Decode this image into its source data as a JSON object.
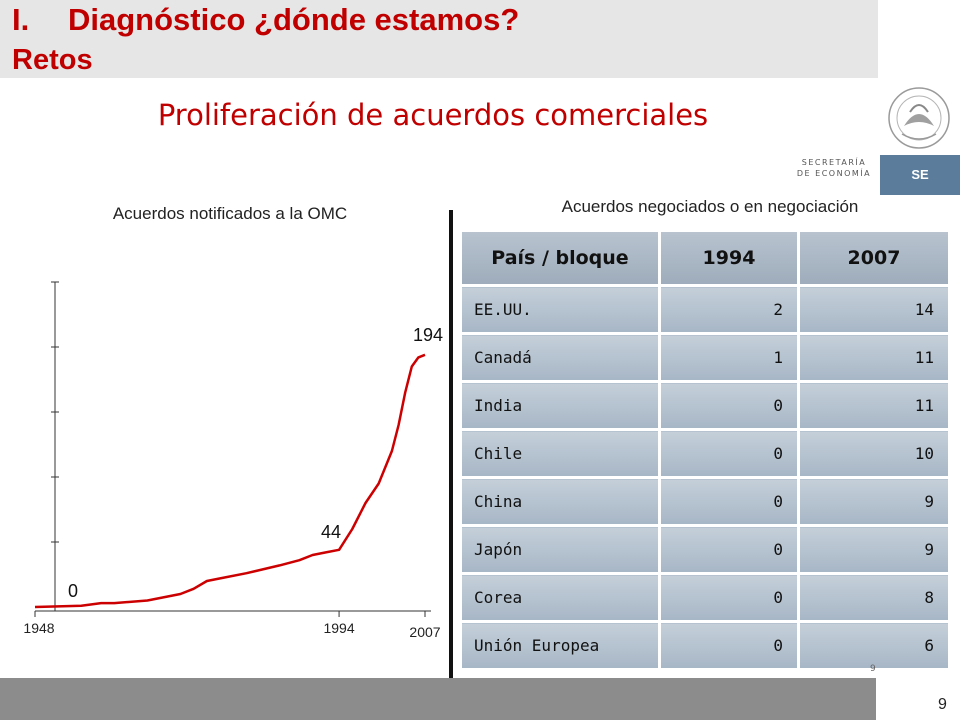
{
  "header": {
    "section_number": "I.",
    "title": "Diagnóstico ¿dónde estamos?",
    "retos": "Retos",
    "subtitle": "Proliferación de acuerdos comerciales"
  },
  "logo": {
    "secretaria": "SECRETARÍA",
    "economia": "DE ECONOMÍA",
    "se": "SE"
  },
  "chart_caption": "Acuerdos notificados a la OMC",
  "chart_data": {
    "type": "line",
    "title": "Acuerdos notificados a la OMC",
    "x": [
      1948,
      1955,
      1958,
      1960,
      1965,
      1970,
      1972,
      1974,
      1976,
      1980,
      1985,
      1988,
      1990,
      1992,
      1994,
      1996,
      1998,
      2000,
      2002,
      2003,
      2004,
      2005,
      2006,
      2007
    ],
    "y": [
      0,
      1,
      3,
      3,
      5,
      10,
      14,
      20,
      22,
      26,
      32,
      36,
      40,
      42,
      44,
      60,
      80,
      95,
      120,
      140,
      165,
      185,
      192,
      194
    ],
    "xticks": [
      "1948",
      "1994",
      "2007"
    ],
    "annotations": [
      {
        "x": 1948,
        "y": 0,
        "label": "0"
      },
      {
        "x": 1994,
        "y": 44,
        "label": "44"
      },
      {
        "x": 2007,
        "y": 194,
        "label": "194"
      }
    ],
    "xlim": [
      1948,
      2007
    ],
    "ylim": [
      0,
      250
    ],
    "line_color": "#cc0000"
  },
  "table_caption": "Acuerdos negociados o en negociación",
  "table": {
    "headers": [
      "País / bloque",
      "1994",
      "2007"
    ],
    "rows": [
      [
        "EE.UU.",
        "2",
        "14"
      ],
      [
        "Canadá",
        "1",
        "11"
      ],
      [
        "India",
        "0",
        "11"
      ],
      [
        "Chile",
        "0",
        "10"
      ],
      [
        "China",
        "0",
        "9"
      ],
      [
        "Japón",
        "0",
        "9"
      ],
      [
        "Corea",
        "0",
        "8"
      ],
      [
        "Unión Europea",
        "0",
        "6"
      ]
    ]
  },
  "slide_number_small": "9",
  "page_number": "9",
  "colors": {
    "accent_red": "#c00000",
    "table_blue": "#a7b6c6",
    "footer_gray": "#8c8c8c",
    "se_blue": "#5b7d9b"
  }
}
